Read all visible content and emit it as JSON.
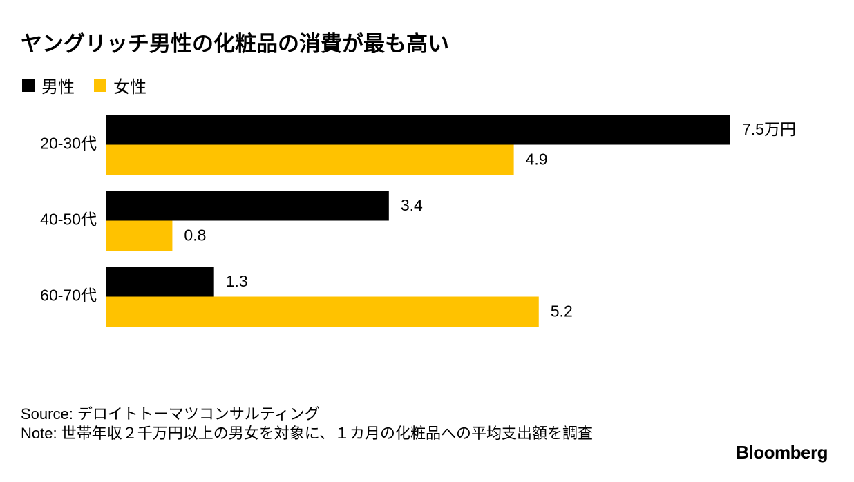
{
  "chart_data": {
    "type": "bar",
    "orientation": "horizontal",
    "title": "ヤングリッチ男性の化粧品の消費が最も高い",
    "categories": [
      "20-30代",
      "40-50代",
      "60-70代"
    ],
    "series": [
      {
        "name": "男性",
        "color": "#000000",
        "values": [
          7.5,
          3.4,
          1.3
        ],
        "value_labels": [
          "7.5万円",
          "3.4",
          "1.3"
        ]
      },
      {
        "name": "女性",
        "color": "#ffc200",
        "values": [
          4.9,
          0.8,
          5.2
        ]
      }
    ],
    "xlim": [
      0,
      7.5
    ],
    "legend": "top-left",
    "source": "Source: デロイトトーマツコンサルティング",
    "note": "Note: 世帯年収２千万円以上の男女を対象に、１カ月の化粧品への平均支出額を調査",
    "brand": "Bloomberg"
  }
}
